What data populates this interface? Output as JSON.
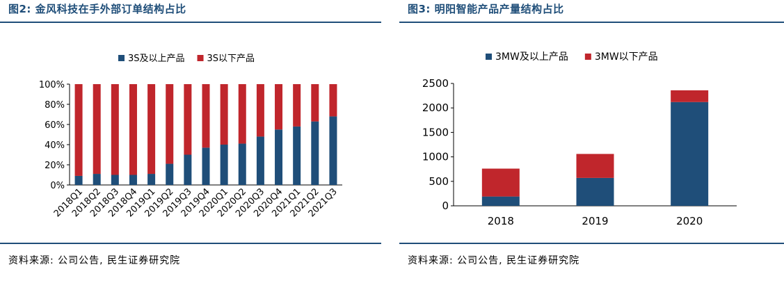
{
  "colors": {
    "accent": "#1f4e79",
    "series_blue": "#1f4e79",
    "series_red": "#c0262c",
    "axis": "#000000"
  },
  "left": {
    "title": "图2: 金风科技在手外部订单结构占比",
    "source": "资料来源: 公司公告, 民生证券研究院",
    "chart_data": {
      "type": "bar",
      "stacked": true,
      "categories": [
        "2018Q1",
        "2018Q2",
        "2018Q3",
        "2018Q4",
        "2019Q1",
        "2019Q2",
        "2019Q3",
        "2019Q4",
        "2020Q1",
        "2020Q2",
        "2020Q3",
        "2020Q4",
        "2021Q1",
        "2021Q2",
        "2021Q3"
      ],
      "series": [
        {
          "name": "3S及以上产品",
          "values": [
            9,
            11,
            10,
            10,
            11,
            21,
            30,
            37,
            40,
            41,
            48,
            55,
            58,
            63,
            68
          ]
        },
        {
          "name": "3S以下产品",
          "values": [
            91,
            89,
            90,
            90,
            89,
            79,
            70,
            63,
            60,
            59,
            52,
            45,
            42,
            37,
            32
          ]
        }
      ],
      "yticks": [
        "0%",
        "20%",
        "40%",
        "60%",
        "80%",
        "100%"
      ],
      "ylim": [
        0,
        100
      ],
      "legend_position": "top",
      "grid": false
    }
  },
  "right": {
    "title": "图3: 明阳智能产品产量结构占比",
    "source": "资料来源: 公司公告, 民生证券研究院",
    "chart_data": {
      "type": "bar",
      "stacked": true,
      "categories": [
        "2018",
        "2019",
        "2020"
      ],
      "series": [
        {
          "name": "3MW及以上产品",
          "values": [
            190,
            570,
            2120
          ]
        },
        {
          "name": "3MW以下产品",
          "values": [
            570,
            490,
            240
          ]
        }
      ],
      "yticks": [
        "0",
        "500",
        "1000",
        "1500",
        "2000",
        "2500"
      ],
      "ylim": [
        0,
        2500
      ],
      "legend_position": "top",
      "grid": false
    }
  }
}
